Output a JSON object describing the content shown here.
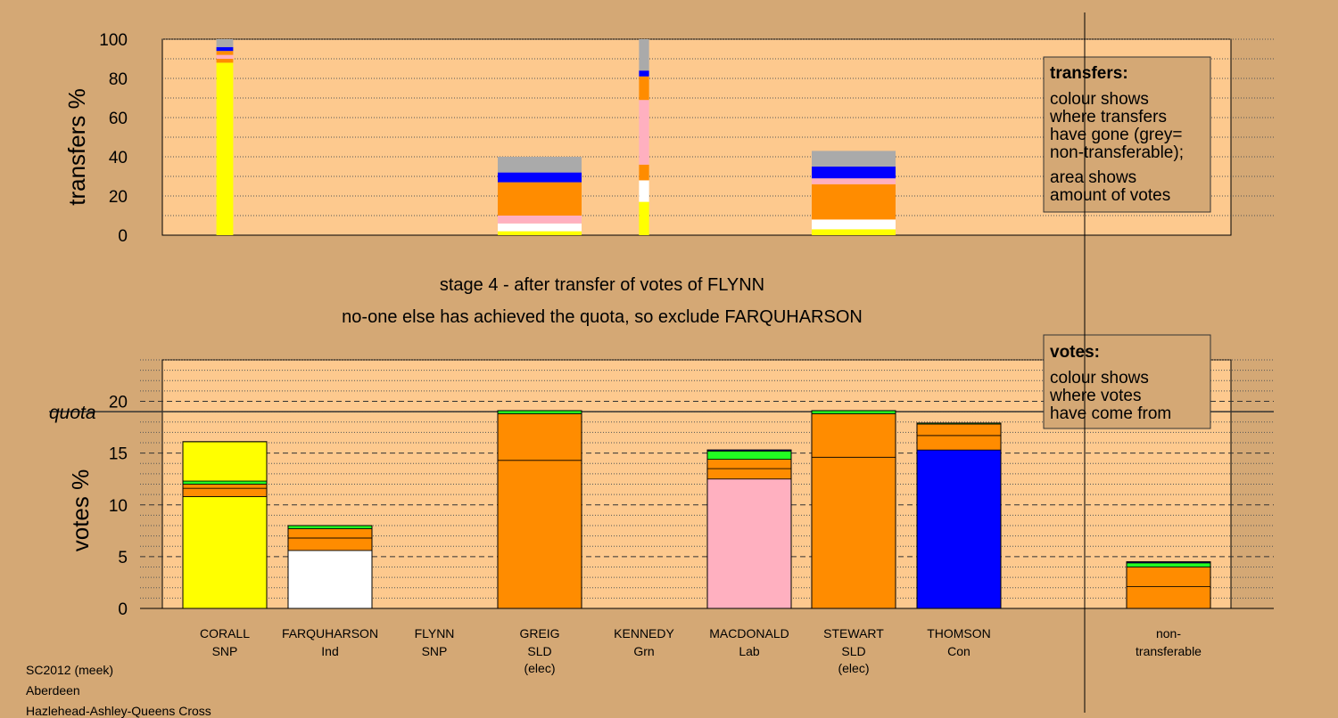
{
  "colors": {
    "background": "#d4a875",
    "plot_bg": "#fdc98e",
    "SNP": "#ffff00",
    "Ind": "#ffffff",
    "SLD": "#ff8c00",
    "Grn": "#22ff22",
    "Lab": "#ffb0c0",
    "Con": "#0000ff",
    "nontransferable": "#aaaaaa"
  },
  "stage_text": {
    "line1": "stage 4 - after transfer of votes of FLYNN",
    "line2": "no-one else has achieved the quota, so exclude FARQUHARSON"
  },
  "legends": {
    "transfers": {
      "title": "transfers:",
      "lines": [
        "colour shows",
        "where transfers",
        "have gone (grey=",
        "non-transferable);"
      ],
      "lines2": [
        "area shows",
        "amount of votes"
      ]
    },
    "votes": {
      "title": "votes:",
      "lines": [
        "colour shows",
        "where votes",
        "have come from"
      ]
    }
  },
  "footer": [
    "SC2012 (meek)",
    "Aberdeen",
    "Hazlehead-Ashley-Queens Cross"
  ],
  "chart_data": [
    {
      "type": "bar",
      "ylabel": "transfers %",
      "ylim": [
        0,
        100
      ],
      "yticks": [
        0,
        20,
        40,
        60,
        80,
        100
      ],
      "note": "stacked transfer bars; bar width shows amount of votes",
      "bars": [
        {
          "position": "CORALL",
          "relwidth": 0.2,
          "segments": [
            {
              "party": "SNP",
              "value": 88
            },
            {
              "party": "SLD",
              "value": 2
            },
            {
              "party": "Lab",
              "value": 2
            },
            {
              "party": "SLD",
              "value": 2
            },
            {
              "party": "Con",
              "value": 2
            },
            {
              "party": "nontransferable",
              "value": 4
            }
          ]
        },
        {
          "position": "GREIG",
          "relwidth": 1.0,
          "segments": [
            {
              "party": "SNP",
              "value": 2
            },
            {
              "party": "Ind",
              "value": 4
            },
            {
              "party": "Lab",
              "value": 4
            },
            {
              "party": "SLD",
              "value": 17
            },
            {
              "party": "Con",
              "value": 5
            },
            {
              "party": "nontransferable",
              "value": 8
            }
          ]
        },
        {
          "position": "KENNEDY",
          "relwidth": 0.12,
          "segments": [
            {
              "party": "SNP",
              "value": 17
            },
            {
              "party": "Ind",
              "value": 11
            },
            {
              "party": "SLD",
              "value": 8
            },
            {
              "party": "Lab",
              "value": 33
            },
            {
              "party": "SLD",
              "value": 12
            },
            {
              "party": "Con",
              "value": 3
            },
            {
              "party": "nontransferable",
              "value": 16
            }
          ]
        },
        {
          "position": "STEWART",
          "relwidth": 1.0,
          "segments": [
            {
              "party": "SNP",
              "value": 3
            },
            {
              "party": "Ind",
              "value": 5
            },
            {
              "party": "SLD",
              "value": 18
            },
            {
              "party": "Lab",
              "value": 3
            },
            {
              "party": "Con",
              "value": 6
            },
            {
              "party": "nontransferable",
              "value": 8
            }
          ]
        }
      ]
    },
    {
      "type": "bar",
      "ylabel": "votes %",
      "ylim": [
        0,
        24
      ],
      "yticks": [
        0,
        5,
        10,
        15,
        20
      ],
      "quota": 19,
      "quota_label": "quota",
      "candidates": [
        {
          "name": "CORALL",
          "party": "SNP",
          "extra": "",
          "segments": [
            {
              "party": "SNP",
              "value": 10.8
            },
            {
              "party": "SLD",
              "value": 0.8
            },
            {
              "party": "SLD",
              "value": 0.4
            },
            {
              "party": "Grn",
              "value": 0.3
            },
            {
              "party": "SNP",
              "value": 3.8
            }
          ]
        },
        {
          "name": "FARQUHARSON",
          "party": "Ind",
          "extra": "",
          "segments": [
            {
              "party": "Ind",
              "value": 5.6
            },
            {
              "party": "SLD",
              "value": 1.2
            },
            {
              "party": "SLD",
              "value": 0.9
            },
            {
              "party": "Grn",
              "value": 0.3
            }
          ]
        },
        {
          "name": "FLYNN",
          "party": "SNP",
          "extra": "",
          "segments": []
        },
        {
          "name": "GREIG",
          "party": "SLD",
          "extra": "(elec)",
          "segments": [
            {
              "party": "SLD",
              "value": 14.3
            },
            {
              "party": "SLD",
              "value": 4.5
            },
            {
              "party": "Grn",
              "value": 0.3
            }
          ]
        },
        {
          "name": "KENNEDY",
          "party": "Grn",
          "extra": "",
          "segments": []
        },
        {
          "name": "MACDONALD",
          "party": "Lab",
          "extra": "",
          "segments": [
            {
              "party": "Lab",
              "value": 12.5
            },
            {
              "party": "SLD",
              "value": 1.0
            },
            {
              "party": "SLD",
              "value": 0.9
            },
            {
              "party": "Grn",
              "value": 0.8
            },
            {
              "party": "Con",
              "value": 0.1
            }
          ]
        },
        {
          "name": "STEWART",
          "party": "SLD",
          "extra": "(elec)",
          "segments": [
            {
              "party": "SLD",
              "value": 14.6
            },
            {
              "party": "SLD",
              "value": 4.2
            },
            {
              "party": "Grn",
              "value": 0.3
            }
          ]
        },
        {
          "name": "THOMSON",
          "party": "Con",
          "extra": "",
          "segments": [
            {
              "party": "Con",
              "value": 15.3
            },
            {
              "party": "SLD",
              "value": 1.4
            },
            {
              "party": "SLD",
              "value": 1.1
            },
            {
              "party": "Grn",
              "value": 0.1
            }
          ]
        },
        {
          "name": "non-",
          "party": "transferable",
          "extra": "",
          "segments": [
            {
              "party": "SLD",
              "value": 2.1
            },
            {
              "party": "SLD",
              "value": 1.9
            },
            {
              "party": "Grn",
              "value": 0.4
            },
            {
              "party": "Con",
              "value": 0.1
            }
          ]
        }
      ]
    }
  ]
}
